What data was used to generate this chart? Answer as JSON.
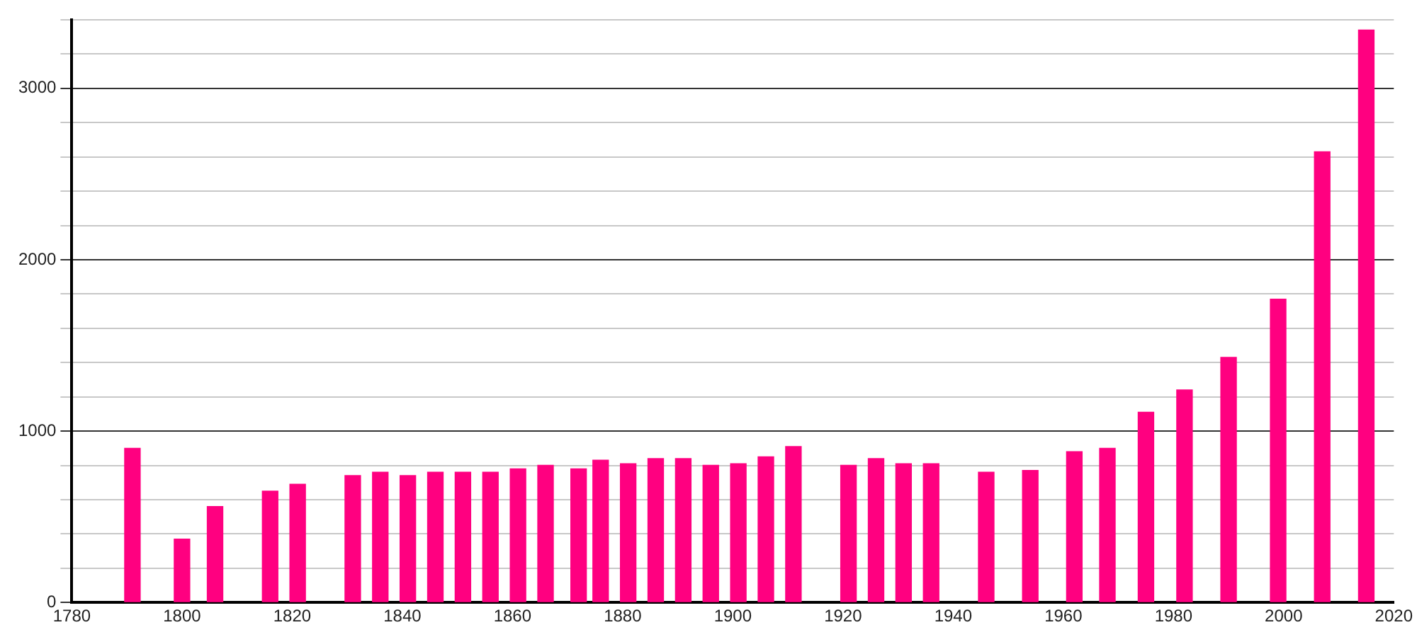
{
  "chart_data": {
    "type": "bar",
    "x": [
      1791,
      1800,
      1806,
      1816,
      1821,
      1831,
      1836,
      1841,
      1846,
      1851,
      1856,
      1861,
      1866,
      1872,
      1876,
      1881,
      1886,
      1891,
      1896,
      1901,
      1906,
      1911,
      1921,
      1926,
      1931,
      1936,
      1946,
      1954,
      1962,
      1968,
      1975,
      1982,
      1990,
      1999,
      2007,
      2015
    ],
    "values": [
      900,
      370,
      560,
      650,
      690,
      740,
      760,
      740,
      760,
      760,
      760,
      780,
      800,
      780,
      830,
      810,
      840,
      840,
      800,
      810,
      850,
      910,
      800,
      840,
      810,
      810,
      760,
      770,
      880,
      900,
      1110,
      1240,
      1430,
      1770,
      2630,
      3340
    ],
    "color": "#ff0080",
    "xlim": [
      1780,
      2020
    ],
    "xticks": [
      1780,
      1800,
      1820,
      1840,
      1860,
      1880,
      1900,
      1920,
      1940,
      1960,
      1980,
      2000,
      2020
    ],
    "ylim": [
      0,
      3400
    ],
    "yticks": [
      0,
      {
        "value": 200,
        "label": null
      },
      {
        "value": 400,
        "label": null
      },
      {
        "value": 600,
        "label": null
      },
      {
        "value": 800,
        "label": null
      },
      1000,
      {
        "value": 1200,
        "label": null
      },
      {
        "value": 1400,
        "label": null
      },
      {
        "value": 1600,
        "label": null
      },
      {
        "value": 1800,
        "label": null
      },
      2000,
      {
        "value": 2200,
        "label": null
      },
      {
        "value": 2400,
        "label": null
      },
      {
        "value": 2600,
        "label": null
      },
      {
        "value": 2800,
        "label": null
      },
      3000,
      {
        "value": 3200,
        "label": null
      },
      {
        "value": 3400,
        "label": null
      }
    ],
    "grid": "y"
  }
}
